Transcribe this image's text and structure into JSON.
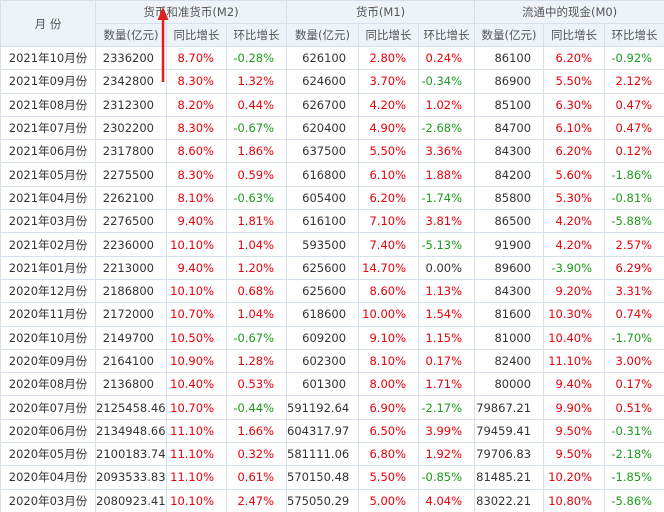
{
  "header": {
    "month": "月 份",
    "groups": [
      "货币和准货币(M2)",
      "货币(M1)",
      "流通中的现金(M0)"
    ],
    "subheads": [
      "数量(亿元)",
      "同比增长",
      "环比增长",
      "数量(亿元)",
      "同比增长",
      "环比增长",
      "数量(亿元)",
      "同比增长",
      "环比增长"
    ]
  },
  "table": {
    "rows": [
      [
        "2021年10月份",
        2336200,
        "8.70%",
        "-0.28%",
        626100,
        "2.80%",
        "0.24%",
        86100,
        "6.20%",
        "-0.92%"
      ],
      [
        "2021年09月份",
        2342800,
        "8.30%",
        "1.32%",
        624600,
        "3.70%",
        "-0.34%",
        86900,
        "5.50%",
        "2.12%"
      ],
      [
        "2021年08月份",
        2312300,
        "8.20%",
        "0.44%",
        626700,
        "4.20%",
        "1.02%",
        85100,
        "6.30%",
        "0.47%"
      ],
      [
        "2021年07月份",
        2302200,
        "8.30%",
        "-0.67%",
        620400,
        "4.90%",
        "-2.68%",
        84700,
        "6.10%",
        "0.47%"
      ],
      [
        "2021年06月份",
        2317800,
        "8.60%",
        "1.86%",
        637500,
        "5.50%",
        "3.36%",
        84300,
        "6.20%",
        "0.12%"
      ],
      [
        "2021年05月份",
        2275500,
        "8.30%",
        "0.59%",
        616800,
        "6.10%",
        "1.88%",
        84200,
        "5.60%",
        "-1.86%"
      ],
      [
        "2021年04月份",
        2262100,
        "8.10%",
        "-0.63%",
        605400,
        "6.20%",
        "-1.74%",
        85800,
        "5.30%",
        "-0.81%"
      ],
      [
        "2021年03月份",
        2276500,
        "9.40%",
        "1.81%",
        616100,
        "7.10%",
        "3.81%",
        86500,
        "4.20%",
        "-5.88%"
      ],
      [
        "2021年02月份",
        2236000,
        "10.10%",
        "1.04%",
        593500,
        "7.40%",
        "-5.13%",
        91900,
        "4.20%",
        "2.57%"
      ],
      [
        "2021年01月份",
        2213000,
        "9.40%",
        "1.20%",
        625600,
        "14.70%",
        "0.00%",
        89600,
        "-3.90%",
        "6.29%"
      ],
      [
        "2020年12月份",
        2186800,
        "10.10%",
        "0.68%",
        625600,
        "8.60%",
        "1.13%",
        84300,
        "9.20%",
        "3.31%"
      ],
      [
        "2020年11月份",
        2172000,
        "10.70%",
        "1.04%",
        618600,
        "10.00%",
        "1.54%",
        81600,
        "10.30%",
        "0.74%"
      ],
      [
        "2020年10月份",
        2149700,
        "10.50%",
        "-0.67%",
        609200,
        "9.10%",
        "1.15%",
        81000,
        "10.40%",
        "-1.70%"
      ],
      [
        "2020年09月份",
        2164100,
        "10.90%",
        "1.28%",
        602300,
        "8.10%",
        "0.17%",
        82400,
        "11.10%",
        "3.00%"
      ],
      [
        "2020年08月份",
        2136800,
        "10.40%",
        "0.53%",
        601300,
        "8.00%",
        "1.71%",
        80000,
        "9.40%",
        "0.17%"
      ],
      [
        "2020年07月份",
        2125458.46,
        "10.70%",
        "-0.44%",
        591192.64,
        "6.90%",
        "-2.17%",
        79867.21,
        "9.90%",
        "0.51%"
      ],
      [
        "2020年06月份",
        2134948.66,
        "11.10%",
        "1.66%",
        604317.97,
        "6.50%",
        "3.99%",
        79459.41,
        "9.50%",
        "-0.31%"
      ],
      [
        "2020年05月份",
        2100183.74,
        "11.10%",
        "0.32%",
        581111.06,
        "6.80%",
        "1.92%",
        79706.83,
        "9.50%",
        "-2.18%"
      ],
      [
        "2020年04月份",
        2093533.83,
        "11.10%",
        "0.61%",
        570150.48,
        "5.50%",
        "-0.85%",
        81485.21,
        "10.20%",
        "-1.85%"
      ],
      [
        "2020年03月份",
        2080923.41,
        "10.10%",
        "2.47%",
        575050.29,
        "5.00%",
        "4.04%",
        83022.21,
        "10.80%",
        "-5.86%"
      ]
    ]
  }
}
